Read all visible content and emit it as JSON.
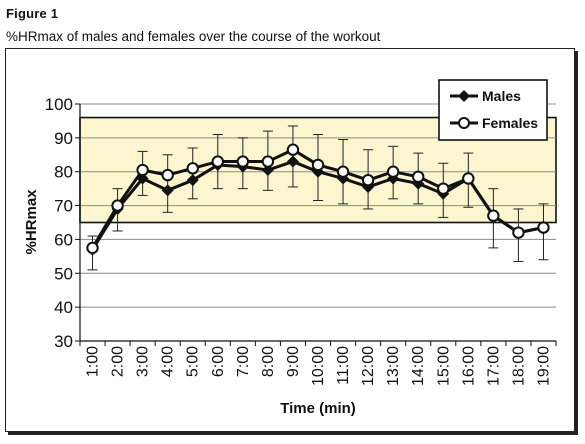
{
  "figure": {
    "label": "Figure 1",
    "caption": "%HRmax of males and females over the course of the workout"
  },
  "chart_data": {
    "type": "line",
    "title": "",
    "xlabel": "Time (min)",
    "ylabel": "%HRmax",
    "ylim": [
      30,
      100
    ],
    "yticks": [
      30,
      40,
      50,
      60,
      70,
      80,
      90,
      100
    ],
    "categories": [
      "1:00",
      "2:00",
      "3:00",
      "4:00",
      "5:00",
      "6:00",
      "7:00",
      "8:00",
      "9:00",
      "10:00",
      "11:00",
      "12:00",
      "13:00",
      "14:00",
      "15:00",
      "16:00",
      "17:00",
      "18:00",
      "19:00"
    ],
    "target_zone": [
      65,
      96
    ],
    "legend_position": "top-right",
    "grid": "horizontal",
    "series": [
      {
        "name": "Males",
        "marker": "diamond-filled",
        "values": [
          57,
          69,
          78,
          74.5,
          77.5,
          82,
          81.5,
          80.5,
          83,
          80,
          78,
          75.5,
          78,
          76.5,
          73.5,
          78,
          67,
          62,
          63.5
        ]
      },
      {
        "name": "Females",
        "marker": "circle-open",
        "values": [
          57.5,
          70,
          80.5,
          79,
          81,
          83,
          83,
          83,
          86.5,
          82,
          80,
          77.5,
          80,
          78.5,
          75,
          78,
          67,
          62,
          63.5
        ],
        "error_high": [
          61,
          75,
          86,
          85,
          87,
          91,
          90,
          92,
          93.5,
          91,
          89.5,
          86.5,
          87.5,
          85.5,
          82.5,
          85.5,
          75,
          69,
          70.5
        ],
        "error_low": [
          51,
          62.5,
          73,
          68,
          72,
          75,
          75,
          74.5,
          75.5,
          71.5,
          70.5,
          69,
          72,
          70.5,
          66.5,
          69.5,
          57.5,
          53.5,
          54
        ]
      }
    ]
  },
  "colors": {
    "zone_fill": "#fbf6cf",
    "line": "#111111",
    "grid": "#8c8c8c"
  }
}
